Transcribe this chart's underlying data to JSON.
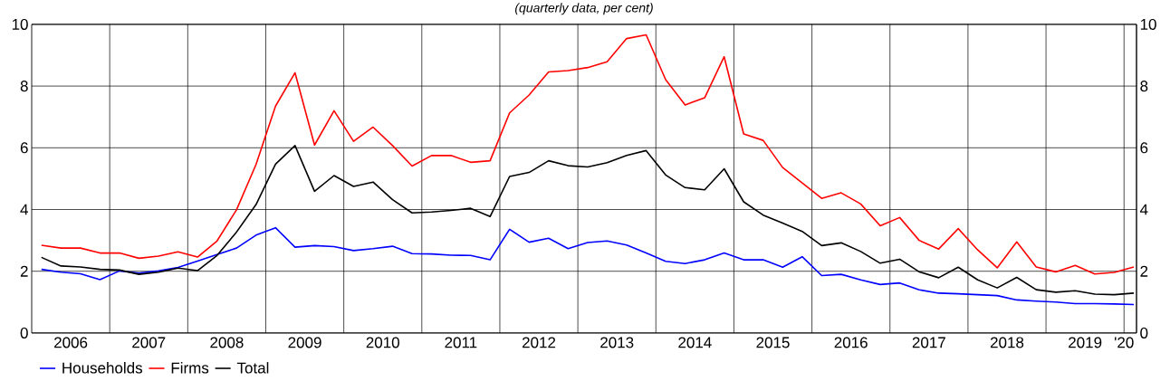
{
  "chart_data": {
    "type": "line",
    "subtitle": "(quarterly data, per cent)",
    "x": [
      2006.125,
      2006.375,
      2006.625,
      2006.875,
      2007.125,
      2007.375,
      2007.625,
      2007.875,
      2008.125,
      2008.375,
      2008.625,
      2008.875,
      2009.125,
      2009.375,
      2009.625,
      2009.875,
      2010.125,
      2010.375,
      2010.625,
      2010.875,
      2011.125,
      2011.375,
      2011.625,
      2011.875,
      2012.125,
      2012.375,
      2012.625,
      2012.875,
      2013.125,
      2013.375,
      2013.625,
      2013.875,
      2014.125,
      2014.375,
      2014.625,
      2014.875,
      2015.125,
      2015.375,
      2015.625,
      2015.875,
      2016.125,
      2016.375,
      2016.625,
      2016.875,
      2017.125,
      2017.375,
      2017.625,
      2017.875,
      2018.125,
      2018.375,
      2018.625,
      2018.875,
      2019.125,
      2019.375,
      2019.625,
      2019.875,
      2020.125
    ],
    "series": [
      {
        "name": "Households",
        "color": "#0000ff",
        "values": [
          2.06,
          1.97,
          1.92,
          1.73,
          2.01,
          1.94,
          2.01,
          2.12,
          2.33,
          2.54,
          2.75,
          3.17,
          3.41,
          2.78,
          2.83,
          2.8,
          2.67,
          2.73,
          2.81,
          2.57,
          2.56,
          2.52,
          2.51,
          2.37,
          3.36,
          2.94,
          3.07,
          2.73,
          2.93,
          2.98,
          2.85,
          2.59,
          2.32,
          2.25,
          2.37,
          2.59,
          2.37,
          2.37,
          2.13,
          2.47,
          1.86,
          1.9,
          1.72,
          1.57,
          1.62,
          1.4,
          1.29,
          1.27,
          1.24,
          1.21,
          1.07,
          1.03,
          1.0,
          0.95,
          0.95,
          0.94,
          0.92
        ]
      },
      {
        "name": "Firms",
        "color": "#ff0000",
        "values": [
          2.84,
          2.75,
          2.75,
          2.59,
          2.59,
          2.42,
          2.49,
          2.63,
          2.46,
          2.98,
          3.99,
          5.46,
          7.35,
          8.43,
          6.09,
          7.2,
          6.21,
          6.67,
          6.07,
          5.41,
          5.75,
          5.75,
          5.53,
          5.58,
          7.13,
          7.71,
          8.46,
          8.5,
          8.6,
          8.79,
          9.54,
          9.66,
          8.21,
          7.39,
          7.62,
          8.95,
          6.45,
          6.24,
          5.36,
          4.86,
          4.36,
          4.54,
          4.18,
          3.47,
          3.74,
          3.0,
          2.72,
          3.38,
          2.69,
          2.11,
          2.95,
          2.14,
          1.98,
          2.19,
          1.91,
          1.96,
          2.14
        ]
      },
      {
        "name": "Total",
        "color": "#000000",
        "values": [
          2.45,
          2.17,
          2.14,
          2.06,
          2.04,
          1.9,
          1.97,
          2.1,
          2.02,
          2.51,
          3.27,
          4.16,
          5.47,
          6.07,
          4.59,
          5.1,
          4.75,
          4.89,
          4.32,
          3.89,
          3.92,
          3.97,
          4.04,
          3.77,
          5.07,
          5.2,
          5.58,
          5.42,
          5.38,
          5.52,
          5.75,
          5.91,
          5.12,
          4.71,
          4.64,
          5.32,
          4.25,
          3.82,
          3.56,
          3.29,
          2.83,
          2.92,
          2.64,
          2.26,
          2.39,
          1.98,
          1.79,
          2.13,
          1.72,
          1.46,
          1.8,
          1.4,
          1.32,
          1.37,
          1.26,
          1.24,
          1.29
        ]
      }
    ],
    "xlim": [
      2006,
      2020.16
    ],
    "xticks": [
      {
        "value": 2007,
        "label": null
      },
      {
        "value": 2008,
        "label": null
      },
      {
        "value": 2009,
        "label": null
      },
      {
        "value": 2010,
        "label": null
      },
      {
        "value": 2011,
        "label": null
      },
      {
        "value": 2012,
        "label": null
      },
      {
        "value": 2013,
        "label": null
      },
      {
        "value": 2014,
        "label": null
      },
      {
        "value": 2015,
        "label": null
      },
      {
        "value": 2016,
        "label": null
      },
      {
        "value": 2017,
        "label": null
      },
      {
        "value": 2018,
        "label": null
      },
      {
        "value": 2019,
        "label": null
      },
      {
        "value": 2020,
        "label": null
      },
      {
        "value": 2006.5,
        "label": "2006"
      },
      {
        "value": 2007.5,
        "label": "2007"
      },
      {
        "value": 2008.5,
        "label": "2008"
      },
      {
        "value": 2009.5,
        "label": "2009"
      },
      {
        "value": 2010.5,
        "label": "2010"
      },
      {
        "value": 2011.5,
        "label": "2011"
      },
      {
        "value": 2012.5,
        "label": "2012"
      },
      {
        "value": 2013.5,
        "label": "2013"
      },
      {
        "value": 2014.5,
        "label": "2014"
      },
      {
        "value": 2015.5,
        "label": "2015"
      },
      {
        "value": 2016.5,
        "label": "2016"
      },
      {
        "value": 2017.5,
        "label": "2017"
      },
      {
        "value": 2018.5,
        "label": "2018"
      },
      {
        "value": 2019.5,
        "label": "2019"
      },
      {
        "value": 2020,
        "label": "'20"
      }
    ],
    "ylim": [
      0,
      10
    ],
    "yticks": [
      0,
      2,
      4,
      6,
      8,
      10
    ],
    "y2lim": [
      0,
      10
    ],
    "y2ticks": [
      0,
      2,
      4,
      6,
      8,
      10
    ],
    "grid": true,
    "legend": "bottom"
  }
}
